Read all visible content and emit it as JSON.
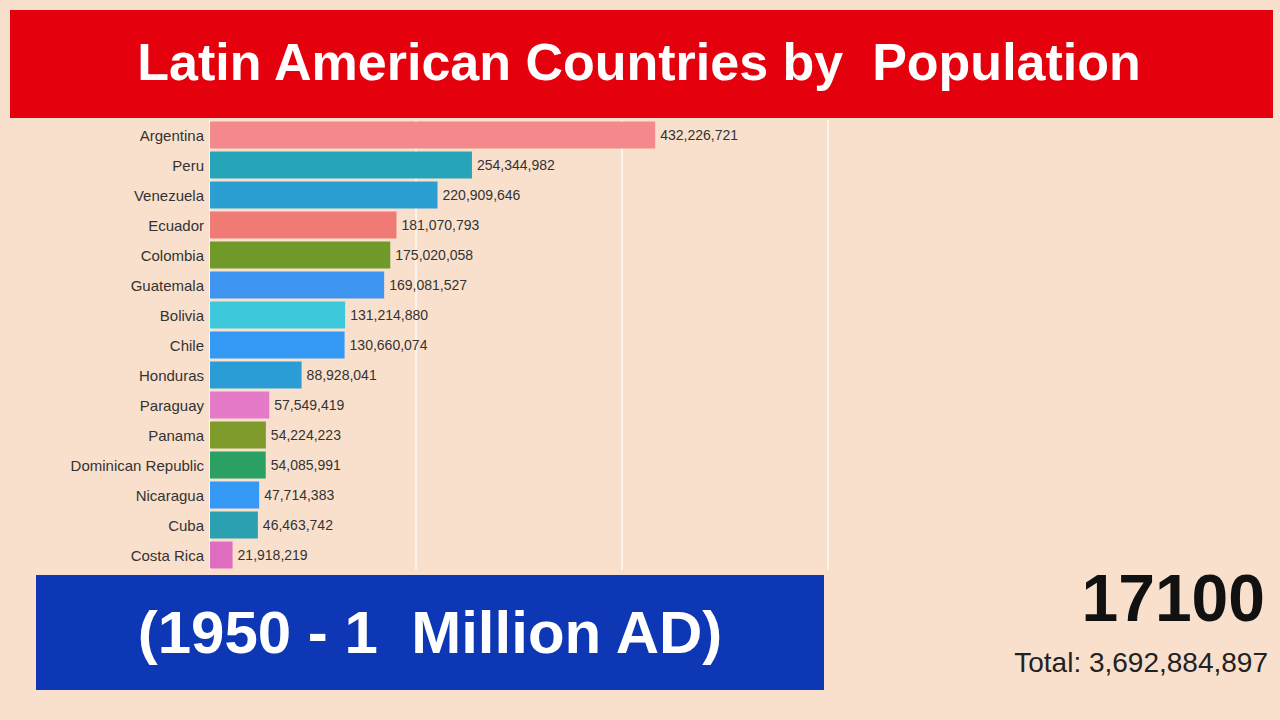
{
  "chart_data": {
    "type": "bar",
    "title": "Latin American Countries by  Population",
    "subtitle": "(1950 - 1  Million AD)",
    "annotations": [
      "17100",
      "Total: 3,692,884,897"
    ],
    "orientation": "horizontal",
    "categories": [
      "Argentina",
      "Peru",
      "Venezuela",
      "Ecuador",
      "Colombia",
      "Guatemala",
      "Bolivia",
      "Chile",
      "Honduras",
      "Paraguay",
      "Panama",
      "Dominican Republic",
      "Nicaragua",
      "Cuba",
      "Costa Rica"
    ],
    "values": [
      432226721,
      254344982,
      220909646,
      181070793,
      175020058,
      169081527,
      131214880,
      130660074,
      88928041,
      57549419,
      54224223,
      54085991,
      47714383,
      46463742,
      21918219
    ],
    "value_labels": [
      "432,226,721",
      "254,344,982",
      "220,909,646",
      "181,070,793",
      "175,020,058",
      "169,081,527",
      "131,214,880",
      "130,660,074",
      "88,928,041",
      "57,549,419",
      "54,224,223",
      "54,085,991",
      "47,714,383",
      "46,463,742",
      "21,918,219"
    ],
    "colors": [
      "#f4898c",
      "#26a5b8",
      "#2b9fd2",
      "#f07b74",
      "#6f9a2a",
      "#3e95f0",
      "#3ec8dc",
      "#3399f5",
      "#2a9dd6",
      "#e47ac8",
      "#7d9a2a",
      "#2aa063",
      "#3399f5",
      "#2aa0b0",
      "#e06ec0"
    ],
    "xlim": [
      0,
      600000000
    ],
    "xticks": [
      0,
      200000000,
      400000000,
      600000000
    ],
    "grid": true,
    "tick_labels": "y",
    "data_labels": true
  }
}
